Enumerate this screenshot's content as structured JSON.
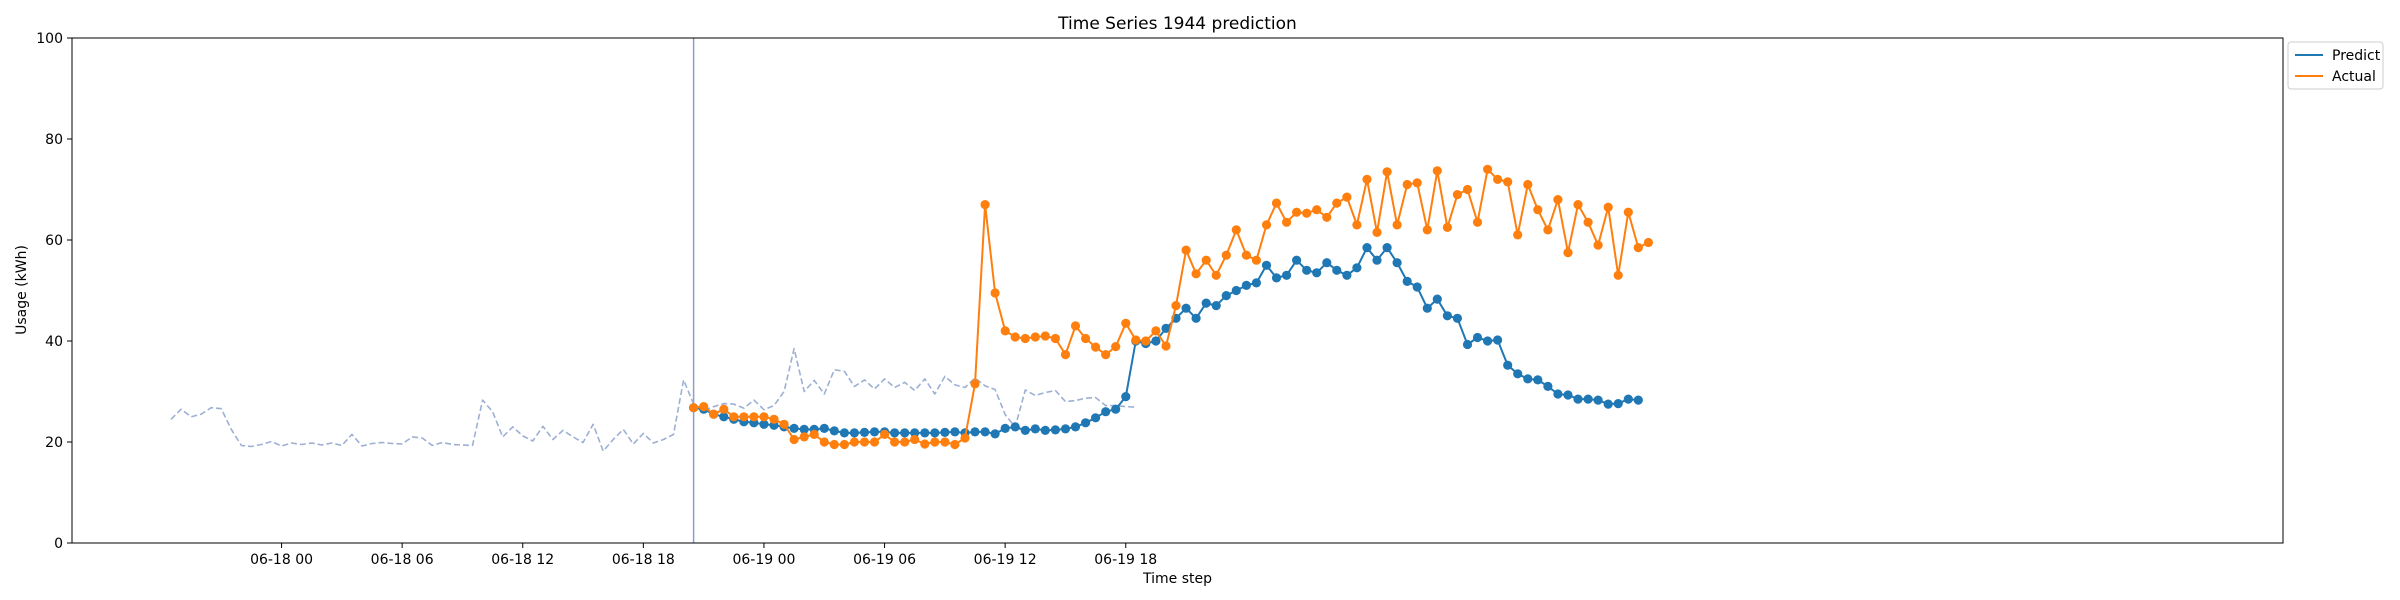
{
  "chart_data": {
    "type": "line",
    "title": "Time Series 1944 prediction",
    "xlabel": "Time step",
    "ylabel": "Usage (kWh)",
    "ylim": [
      0,
      100
    ],
    "yticks": [
      0,
      20,
      40,
      60,
      80,
      100
    ],
    "x_start": "2024-06-17 18:30",
    "x_step_minutes": 30,
    "xticks": [
      {
        "label": "06-18 00",
        "index": 11
      },
      {
        "label": "06-18 06",
        "index": 23
      },
      {
        "label": "06-18 12",
        "index": 35
      },
      {
        "label": "06-18 18",
        "index": 47
      },
      {
        "label": "06-19 00",
        "index": 59
      },
      {
        "label": "06-19 06",
        "index": 71
      },
      {
        "label": "06-19 12",
        "index": 83
      },
      {
        "label": "06-19 18",
        "index": 95
      }
    ],
    "forecast_start_index": 52,
    "grid": false,
    "legend_position": "outside top-right",
    "series": [
      {
        "name": "",
        "style": "dashed",
        "color": "#9db0d4",
        "start_index": 0,
        "values": [
          24.5,
          26.5,
          25.0,
          25.5,
          26.8,
          26.6,
          22.5,
          19.3,
          19.1,
          19.5,
          20.1,
          19.2,
          19.8,
          19.5,
          19.8,
          19.4,
          19.8,
          19.3,
          21.5,
          19.2,
          19.7,
          19.9,
          19.7,
          19.6,
          21.0,
          20.8,
          19.3,
          19.9,
          19.5,
          19.4,
          19.3,
          28.3,
          26.0,
          21.0,
          23.0,
          21.2,
          20.2,
          23.1,
          20.5,
          22.3,
          21.0,
          19.9,
          23.5,
          18.2,
          20.5,
          22.5,
          19.6,
          21.7,
          19.8,
          20.5,
          21.5,
          32.3,
          27.5,
          26.3,
          27.0,
          27.6,
          27.5,
          26.7,
          28.3,
          26.4,
          27.2,
          30.0,
          38.5,
          30.0,
          32.2,
          29.5,
          34.3,
          34.0,
          31.0,
          32.3,
          30.5,
          32.5,
          30.8,
          31.8,
          30.2,
          32.5,
          29.5,
          33.0,
          31.3,
          30.8,
          32.7,
          31.1,
          30.4,
          25.4,
          23.0,
          30.3,
          29.2,
          29.8,
          30.2,
          28.0,
          28.2,
          28.7,
          28.8,
          27.2,
          27.2,
          27.0,
          26.9
        ]
      },
      {
        "name": "Predict",
        "style": "solid-markers",
        "color": "#1f77b4",
        "start_index": 52,
        "values": [
          26.8,
          26.5,
          25.5,
          25.0,
          24.5,
          24.0,
          23.8,
          23.5,
          23.3,
          23.0,
          22.7,
          22.5,
          22.5,
          22.7,
          22.2,
          21.8,
          21.8,
          21.9,
          22.0,
          22.0,
          21.8,
          21.8,
          21.8,
          21.8,
          21.8,
          21.9,
          22.0,
          21.8,
          22.0,
          22.0,
          21.6,
          22.7,
          23.0,
          22.3,
          22.6,
          22.3,
          22.4,
          22.6,
          23.0,
          23.8,
          24.8,
          26.0,
          26.5,
          29.0,
          40.0,
          39.5,
          40.0,
          42.5,
          44.5,
          46.5,
          44.5,
          47.5,
          47.0,
          49.0,
          50.0,
          51.0,
          51.5,
          55.0,
          52.5,
          53.0,
          56.0,
          54.0,
          53.5,
          55.5,
          54.0,
          53.0,
          54.5,
          58.5,
          56.0,
          58.5,
          55.5,
          51.8,
          50.7,
          46.5,
          48.3,
          45.0,
          44.5,
          39.3,
          40.7,
          40.0,
          40.2,
          35.2,
          33.5,
          32.5,
          32.3,
          31.0,
          29.5,
          29.3,
          28.5,
          28.5,
          28.3,
          27.5,
          27.6,
          28.5,
          28.3
        ]
      },
      {
        "name": "Actual",
        "style": "solid-markers",
        "color": "#ff7f0e",
        "start_index": 52,
        "values": [
          26.8,
          27.0,
          25.5,
          26.5,
          25.0,
          25.0,
          25.0,
          25.0,
          24.5,
          23.5,
          20.5,
          21.0,
          21.5,
          20.0,
          19.5,
          19.5,
          20.0,
          20.0,
          20.0,
          21.5,
          20.0,
          20.0,
          20.5,
          19.6,
          20.0,
          20.0,
          19.5,
          20.8,
          31.5,
          67.0,
          49.5,
          42.0,
          40.8,
          40.5,
          40.8,
          41.0,
          40.5,
          37.3,
          43.0,
          40.5,
          38.8,
          37.3,
          38.9,
          43.5,
          40.2,
          40.0,
          42.0,
          39.0,
          47.0,
          58.0,
          53.3,
          56.0,
          53.0,
          57.0,
          62.0,
          57.0,
          56.0,
          63.0,
          67.3,
          63.5,
          65.5,
          65.3,
          66.0,
          64.5,
          67.3,
          68.5,
          63.0,
          72.0,
          61.5,
          73.5,
          63.0,
          71.0,
          71.3,
          62.0,
          73.7,
          62.5,
          69.0,
          70.0,
          63.5,
          74.0,
          72.0,
          71.5,
          61.0,
          71.0,
          66.0,
          62.0,
          68.0,
          57.5,
          67.0,
          63.5,
          59.0,
          66.5,
          53.0,
          65.5,
          58.5,
          59.5
        ]
      }
    ]
  },
  "legend": {
    "items": [
      {
        "label": "Predict",
        "color": "#1f77b4"
      },
      {
        "label": "Actual",
        "color": "#ff7f0e"
      }
    ]
  }
}
